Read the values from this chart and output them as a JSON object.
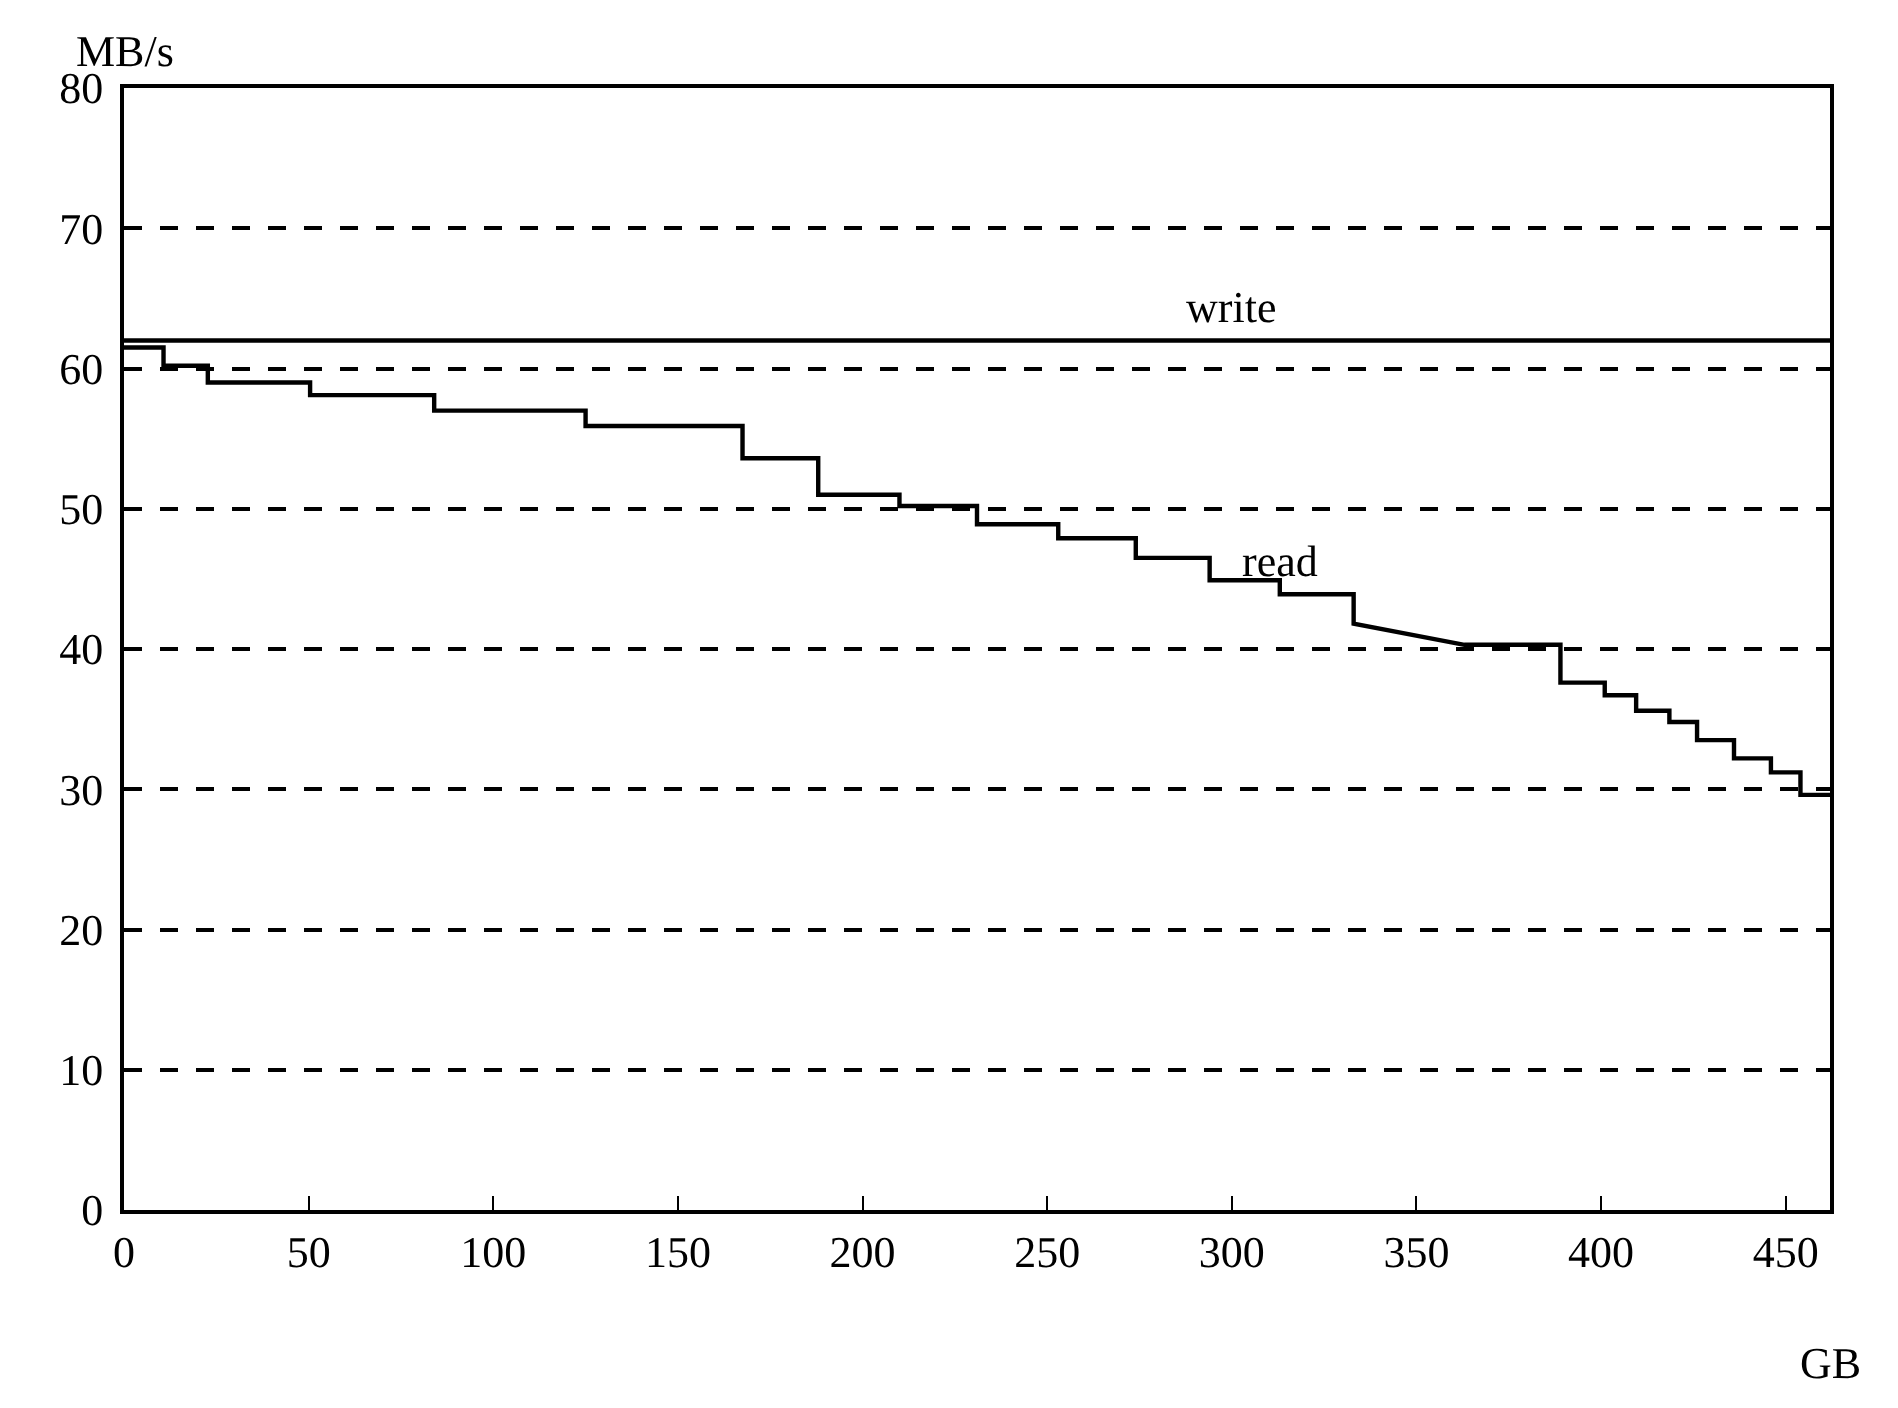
{
  "chart_data": {
    "type": "line",
    "xlabel": "GB",
    "ylabel": "MB/s",
    "xlim": [
      0,
      462
    ],
    "ylim": [
      0,
      80
    ],
    "xticks": [
      0,
      50,
      100,
      150,
      200,
      250,
      300,
      350,
      400,
      450
    ],
    "yticks": [
      0,
      10,
      20,
      30,
      40,
      50,
      60,
      70,
      80
    ],
    "grid": "y",
    "legend": false,
    "marker": "none",
    "line_style": "solid",
    "series": [
      {
        "name": "write",
        "color": "#000000",
        "x": [
          0,
          50,
          100,
          150,
          200,
          250,
          300,
          350,
          400,
          462
        ],
        "values": [
          62,
          62,
          62,
          62,
          62,
          62,
          62,
          62,
          62,
          62
        ]
      },
      {
        "name": "read",
        "color": "#000000",
        "x": [
          0,
          10.7,
          10.7,
          22.7,
          22.7,
          50.4,
          50.4,
          84,
          84,
          125,
          125,
          167.5,
          167.5,
          188,
          188,
          210,
          210,
          231,
          231,
          253,
          253,
          274,
          274,
          294,
          294,
          313,
          313,
          333,
          333,
          363,
          389,
          389,
          401,
          401,
          409.5,
          409.5,
          418.5,
          418.5,
          426,
          426,
          436,
          436,
          446,
          446,
          454,
          454,
          462
        ],
        "values": [
          61.5,
          61.5,
          60.2,
          60.2,
          59.0,
          59.0,
          58.1,
          58.1,
          57.0,
          57.0,
          55.9,
          55.9,
          53.6,
          53.6,
          51.0,
          51.0,
          50.2,
          50.2,
          48.9,
          48.9,
          47.9,
          47.9,
          46.5,
          46.5,
          44.9,
          44.9,
          43.9,
          43.9,
          41.8,
          40.3,
          40.3,
          37.6,
          37.6,
          36.7,
          36.7,
          35.6,
          35.6,
          34.8,
          34.8,
          33.5,
          33.5,
          32.2,
          32.2,
          31.2,
          31.2,
          29.6,
          29.6
        ]
      }
    ]
  }
}
